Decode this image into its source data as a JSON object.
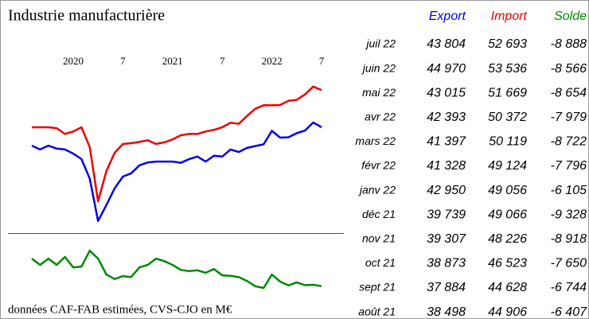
{
  "chart_data": {
    "type": "line",
    "title": "Industrie manufacturière",
    "note": "données CAF-FAB estimées, CVS-CJO en M€",
    "categories": [
      null,
      null,
      null,
      null,
      null,
      "2020",
      null,
      null,
      null,
      null,
      null,
      "7",
      null,
      null,
      null,
      null,
      null,
      "2021",
      null,
      null,
      null,
      null,
      null,
      "7",
      null,
      null,
      null,
      null,
      null,
      "2022",
      null,
      null,
      null,
      null,
      null,
      "7"
    ],
    "ylim": [
      18500,
      57500
    ],
    "y2lim": [
      -13700,
      3800
    ],
    "series": [
      {
        "name": "Export",
        "color": "#0000ee",
        "values": [
          39400,
          38500,
          39400,
          38700,
          38500,
          37500,
          36200,
          31500,
          21400,
          25200,
          29200,
          32000,
          32800,
          34700,
          35400,
          35600,
          35600,
          35600,
          35300,
          36200,
          36800,
          35600,
          37000,
          36800,
          38498,
          37884,
          38873,
          39307,
          39739,
          42950,
          41328,
          41397,
          42393,
          43015,
          44970,
          43804
        ]
      },
      {
        "name": "Import",
        "color": "#ee0000",
        "values": [
          43800,
          43800,
          43800,
          43600,
          42200,
          42800,
          43800,
          39000,
          26100,
          33300,
          37700,
          39800,
          40000,
          40300,
          40700,
          39800,
          40200,
          40900,
          41900,
          42200,
          42200,
          42800,
          43200,
          43800,
          44906,
          44628,
          46523,
          48226,
          49066,
          49056,
          49124,
          50119,
          50372,
          51669,
          53536,
          52693
        ]
      },
      {
        "name": "Solde",
        "color": "#008800",
        "axis": "y2",
        "values": [
          -2300,
          -3800,
          -2300,
          -3800,
          -1900,
          -4400,
          -4200,
          -400,
          -2300,
          -6100,
          -7200,
          -6500,
          -6700,
          -4400,
          -3800,
          -2300,
          -2900,
          -3800,
          -5000,
          -5300,
          -5100,
          -5700,
          -4800,
          -6300,
          -6407,
          -6744,
          -7650,
          -8918,
          -9328,
          -6105,
          -7796,
          -8722,
          -7979,
          -8654,
          -8566,
          -8888
        ]
      }
    ]
  },
  "table": {
    "rows": [
      [
        "juil 22",
        "43 804",
        "52 693",
        "-8 888"
      ],
      [
        "juin 22",
        "44 970",
        "53 536",
        "-8 566"
      ],
      [
        "mai 22",
        "43 015",
        "51 669",
        "-8 654"
      ],
      [
        "avr 22",
        "42 393",
        "50 372",
        "-7 979"
      ],
      [
        "mars 22",
        "41 397",
        "50 119",
        "-8 722"
      ],
      [
        "févr 22",
        "41 328",
        "49 124",
        "-7 796"
      ],
      [
        "janv 22",
        "42 950",
        "49 056",
        "-6 105"
      ],
      [
        "déc 21",
        "39 739",
        "49 066",
        "-9 328"
      ],
      [
        "nov 21",
        "39 307",
        "48 226",
        "-8 918"
      ],
      [
        "oct 21",
        "38 873",
        "46 523",
        "-7 650"
      ],
      [
        "sept 21",
        "37 884",
        "44 628",
        "-6 744"
      ],
      [
        "août 21",
        "38 498",
        "44 906",
        "-6 407"
      ]
    ]
  }
}
